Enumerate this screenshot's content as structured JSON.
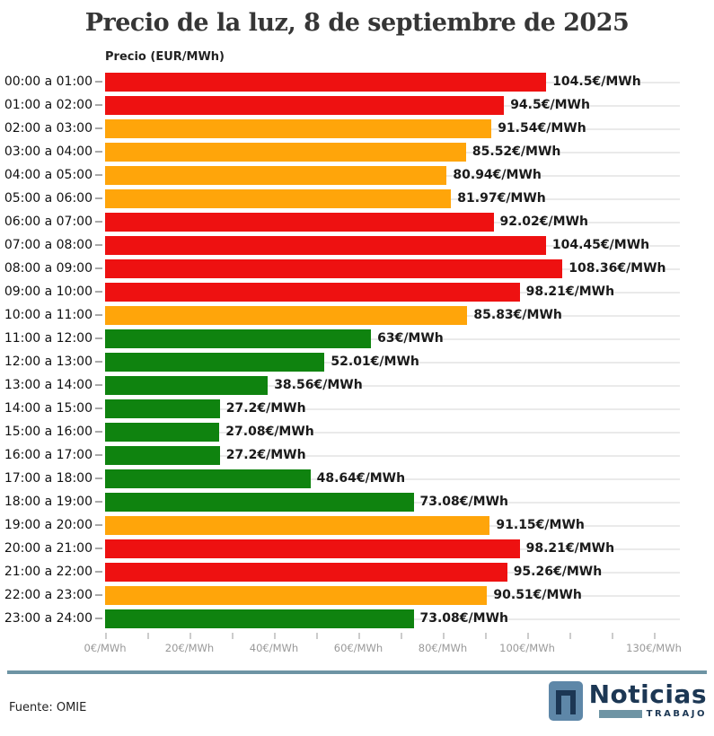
{
  "header": {
    "title": "Precio de la luz, 8 de septiembre de 2025",
    "axis_title": "Precio (EUR/MWh)"
  },
  "footer": {
    "source": "Fuente: OMIE",
    "logo_brand": "Noticias",
    "logo_sub": "TRABAJO"
  },
  "colors": {
    "red": "#ee1111",
    "orange": "#ffa50a",
    "green": "#0f830f",
    "divider": "#6e94a4",
    "logo_navy": "#1c3754",
    "logo_steel": "#5e87a8",
    "gridline": "#eaeaea",
    "tick": "#cccccc"
  },
  "chart_data": {
    "type": "bar",
    "orientation": "horizontal",
    "title": "Precio de la luz, 8 de septiembre de 2025",
    "xlabel": "",
    "ylabel": "Precio (EUR/MWh)",
    "xlim": [
      0,
      130
    ],
    "grid": "per-row horizontal lines",
    "minor_tick_step": 10,
    "x_ticks": [
      {
        "value": 0,
        "label": "0€/MWh"
      },
      {
        "value": 20,
        "label": "20€/MWh"
      },
      {
        "value": 40,
        "label": "40€/MWh"
      },
      {
        "value": 60,
        "label": "60€/MWh"
      },
      {
        "value": 80,
        "label": "80€/MWh"
      },
      {
        "value": 100,
        "label": "100€/MWh"
      },
      {
        "value": 130,
        "label": "130€/MWh"
      }
    ],
    "categories": [
      "00:00 a 01:00",
      "01:00 a 02:00",
      "02:00 a 03:00",
      "03:00 a 04:00",
      "04:00 a 05:00",
      "05:00 a 06:00",
      "06:00 a 07:00",
      "07:00 a 08:00",
      "08:00 a 09:00",
      "09:00 a 10:00",
      "10:00 a 11:00",
      "11:00 a 12:00",
      "12:00 a 13:00",
      "13:00 a 14:00",
      "14:00 a 15:00",
      "15:00 a 16:00",
      "16:00 a 17:00",
      "17:00 a 18:00",
      "18:00 a 19:00",
      "19:00 a 20:00",
      "20:00 a 21:00",
      "21:00 a 22:00",
      "22:00 a 23:00",
      "23:00 a 24:00"
    ],
    "values": [
      104.5,
      94.5,
      91.54,
      85.52,
      80.94,
      81.97,
      92.02,
      104.45,
      108.36,
      98.21,
      85.83,
      63,
      52.01,
      38.56,
      27.2,
      27.08,
      27.2,
      48.64,
      73.08,
      91.15,
      98.21,
      95.26,
      90.51,
      73.08
    ],
    "value_labels": [
      "104.5€/MWh",
      "94.5€/MWh",
      "91.54€/MWh",
      "85.52€/MWh",
      "80.94€/MWh",
      "81.97€/MWh",
      "92.02€/MWh",
      "104.45€/MWh",
      "108.36€/MWh",
      "98.21€/MWh",
      "85.83€/MWh",
      "63€/MWh",
      "52.01€/MWh",
      "38.56€/MWh",
      "27.2€/MWh",
      "27.08€/MWh",
      "27.2€/MWh",
      "48.64€/MWh",
      "73.08€/MWh",
      "91.15€/MWh",
      "98.21€/MWh",
      "95.26€/MWh",
      "90.51€/MWh",
      "73.08€/MWh"
    ],
    "bar_colors": [
      "red",
      "red",
      "orange",
      "orange",
      "orange",
      "orange",
      "red",
      "red",
      "red",
      "red",
      "orange",
      "green",
      "green",
      "green",
      "green",
      "green",
      "green",
      "green",
      "green",
      "orange",
      "red",
      "red",
      "orange",
      "green"
    ]
  }
}
